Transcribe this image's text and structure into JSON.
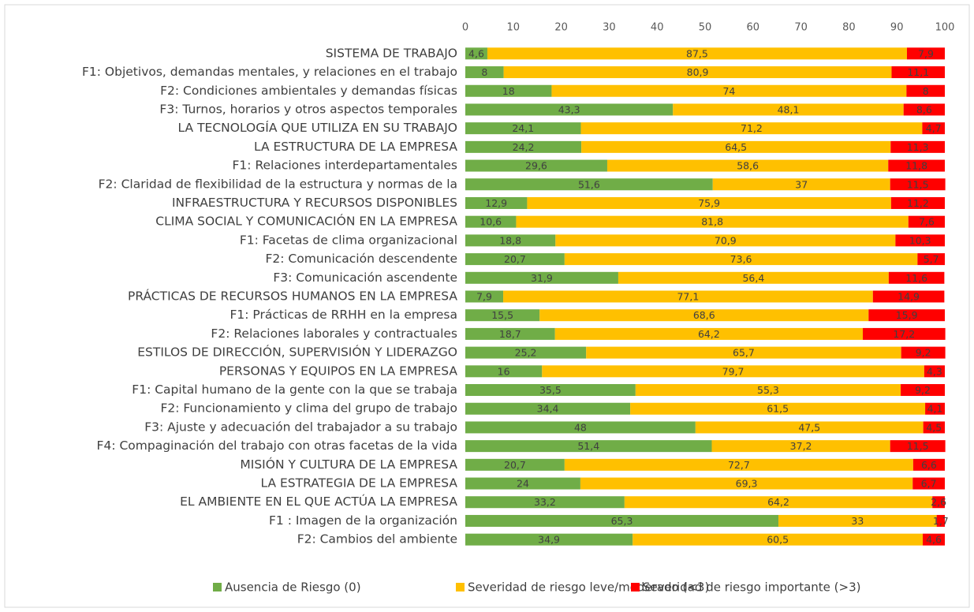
{
  "chart_data": {
    "type": "stacked_barh",
    "categories": [
      "SISTEMA DE TRABAJO",
      "F1: Objetivos, demandas mentales, y relaciones en el trabajo",
      "F2: Condiciones ambientales y demandas físicas",
      "F3: Turnos, horarios y otros aspectos temporales",
      "LA TECNOLOGÍA QUE UTILIZA EN SU TRABAJO",
      "LA ESTRUCTURA DE LA EMPRESA",
      "F1: Relaciones interdepartamentales",
      "F2: Claridad de flexibilidad de la estructura y normas de la",
      "INFRAESTRUCTURA Y RECURSOS DISPONIBLES",
      "CLIMA SOCIAL Y COMUNICACIÓN EN LA EMPRESA",
      "F1: Facetas de clima organizacional",
      "F2: Comunicación descendente",
      "F3: Comunicación ascendente",
      "PRÁCTICAS DE RECURSOS HUMANOS EN LA EMPRESA",
      "F1: Prácticas de RRHH en la empresa",
      "F2: Relaciones laborales y contractuales",
      "ESTILOS DE DIRECCIÓN, SUPERVISIÓN Y LIDERAZGO",
      "PERSONAS Y EQUIPOS EN LA EMPRESA",
      "F1: Capital humano de la gente con la que se trabaja",
      "F2: Funcionamiento  y clima del grupo de trabajo",
      "F3: Ajuste y adecuación del trabajador a su trabajo",
      "F4: Compaginación del trabajo con otras facetas de la vida",
      "MISIÓN Y CULTURA DE LA EMPRESA",
      "LA ESTRATEGIA DE LA EMPRESA",
      "EL AMBIENTE EN EL QUE ACTÚA LA EMPRESA",
      "F1 : Imagen de la organización",
      "F2: Cambios del ambiente"
    ],
    "series": [
      {
        "name": "Ausencia de Riesgo (0)",
        "color": "#70ad47",
        "values": [
          4.6,
          8,
          18,
          43.3,
          24.1,
          24.2,
          29.6,
          51.6,
          12.9,
          10.6,
          18.8,
          20.7,
          31.9,
          7.9,
          15.5,
          18.7,
          25.2,
          16,
          35.5,
          34.4,
          48,
          51.4,
          20.7,
          24,
          33.2,
          65.3,
          34.9
        ],
        "value_labels": [
          "4,6",
          "8",
          "18",
          "43,3",
          "24,1",
          "24,2",
          "29,6",
          "51,6",
          "12,9",
          "10,6",
          "18,8",
          "20,7",
          "31,9",
          "7,9",
          "15,5",
          "18,7",
          "25,2",
          "16",
          "35,5",
          "34,4",
          "48",
          "51,4",
          "20,7",
          "24",
          "33,2",
          "65,3",
          "34,9"
        ]
      },
      {
        "name": "Severidad de riesgo leve/moderado (<3)",
        "color": "#ffc000",
        "values": [
          87.5,
          80.9,
          74,
          48.1,
          71.2,
          64.5,
          58.6,
          37,
          75.9,
          81.8,
          70.9,
          73.6,
          56.4,
          77.1,
          68.6,
          64.2,
          65.7,
          79.7,
          55.3,
          61.5,
          47.5,
          37.2,
          72.7,
          69.3,
          64.2,
          33,
          60.5
        ],
        "value_labels": [
          "87,5",
          "80,9",
          "74",
          "48,1",
          "71,2",
          "64,5",
          "58,6",
          "37",
          "75,9",
          "81,8",
          "70,9",
          "73,6",
          "56,4",
          "77,1",
          "68,6",
          "64,2",
          "65,7",
          "79,7",
          "55,3",
          "61,5",
          "47,5",
          "37,2",
          "72,7",
          "69,3",
          "64,2",
          "33",
          "60,5"
        ]
      },
      {
        "name": "Severidad de riesgo importante (>3)",
        "color": "#ff0000",
        "values": [
          7.9,
          11.1,
          8,
          8.6,
          4.7,
          11.3,
          11.8,
          11.5,
          11.2,
          7.6,
          10.3,
          5.7,
          11.6,
          14.9,
          15.9,
          17.2,
          9.2,
          4.3,
          9.2,
          4.1,
          4.5,
          11.5,
          6.6,
          6.7,
          2.6,
          1.7,
          4.6
        ],
        "value_labels": [
          "7,9",
          "11,1",
          "8",
          "8,6",
          "4,7",
          "11,3",
          "11,8",
          "11,5",
          "11,2",
          "7,6",
          "10,3",
          "5,7",
          "11,6",
          "14,9",
          "15,9",
          "17,2",
          "9,2",
          "4,3",
          "9,2",
          "4,1",
          "4,5",
          "11,5",
          "6,6",
          "6,7",
          "2,6",
          "1,7",
          "4,6"
        ]
      }
    ],
    "xlim": [
      0,
      100
    ],
    "xticks": [
      0,
      10,
      20,
      30,
      40,
      50,
      60,
      70,
      80,
      90,
      100
    ],
    "legend": "bottom"
  }
}
